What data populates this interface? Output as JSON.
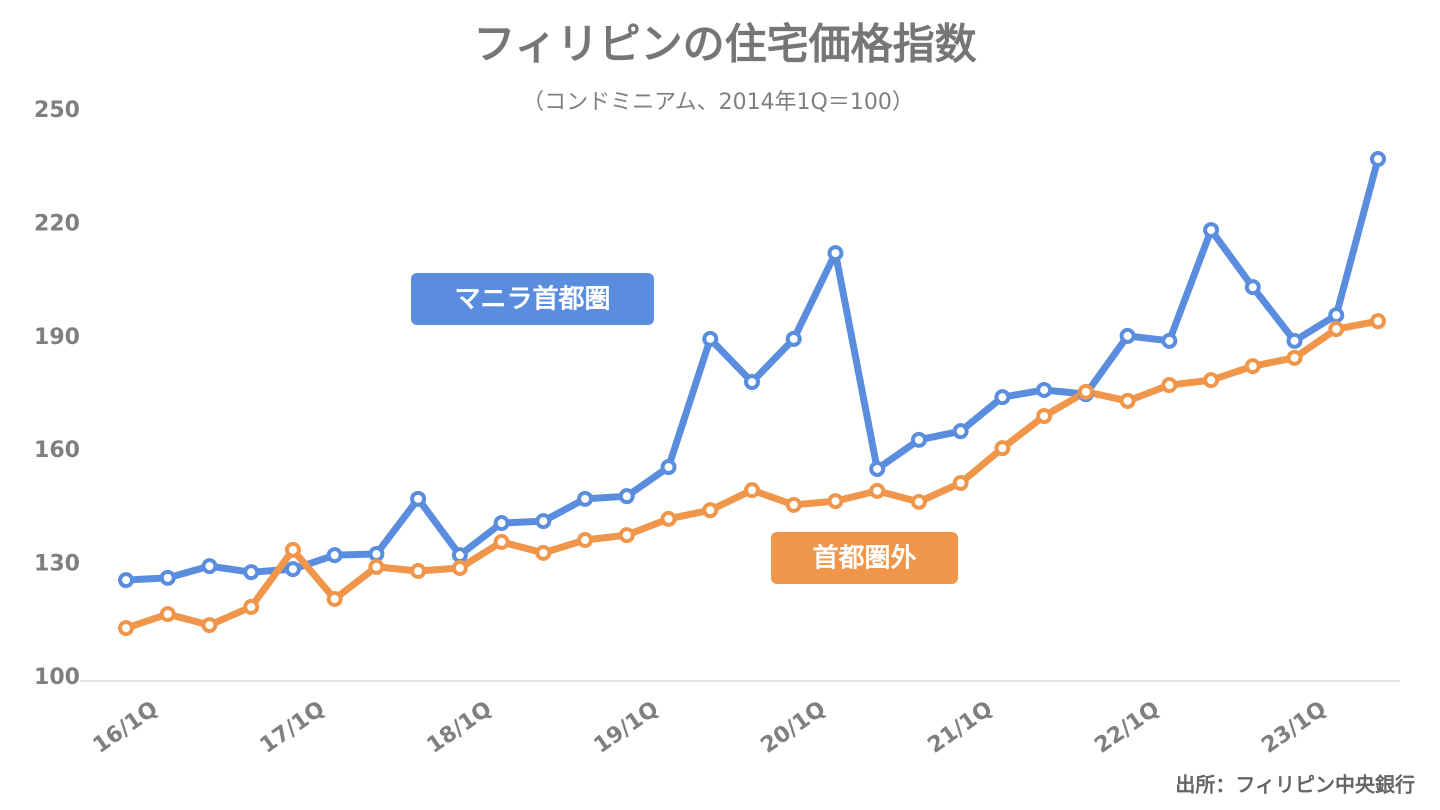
{
  "chart_data": {
    "type": "line",
    "title": "フィリピンの住宅価格指数",
    "subtitle": "（コンドミニアム、2014年1Q＝100）",
    "note": "出所：フィリピン中央銀行",
    "categories": [
      "16/1Q",
      null,
      null,
      null,
      "17/1Q",
      null,
      null,
      null,
      "18/1Q",
      null,
      null,
      null,
      "19/1Q",
      null,
      null,
      null,
      "20/1Q",
      null,
      null,
      null,
      "21/1Q",
      null,
      null,
      null,
      "22/1Q",
      null,
      null,
      null,
      "23/1Q",
      null,
      null
    ],
    "series": [
      {
        "name": "マニラ首都圏",
        "color": "#5b8ddf",
        "values": [
          125.9,
          126.5,
          129.6,
          128,
          128.8,
          132.5,
          132.8,
          147.4,
          132.5,
          141,
          141.5,
          147.4,
          148.1,
          155.8,
          189.7,
          178.3,
          189.7,
          212.4,
          155.3,
          163,
          165.3,
          174.3,
          176.2,
          175.1,
          190.5,
          189.2,
          218.5,
          203.4,
          189.2,
          196,
          237.3
        ]
      },
      {
        "name": "首都圏外",
        "color": "#f0964a",
        "values": [
          113.2,
          116.9,
          114,
          118.8,
          133.9,
          120.9,
          129.4,
          128.3,
          129.1,
          136,
          133.1,
          136.5,
          137.8,
          142.1,
          144.4,
          149.7,
          145.8,
          146.8,
          149.5,
          146.6,
          151.6,
          160.8,
          169.3,
          175.7,
          173.3,
          177.5,
          178.8,
          182.5,
          184.7,
          192.3,
          194.4
        ]
      }
    ],
    "ylim": [
      100,
      250
    ],
    "yticks": [
      100,
      130,
      160,
      190,
      220,
      250
    ]
  }
}
